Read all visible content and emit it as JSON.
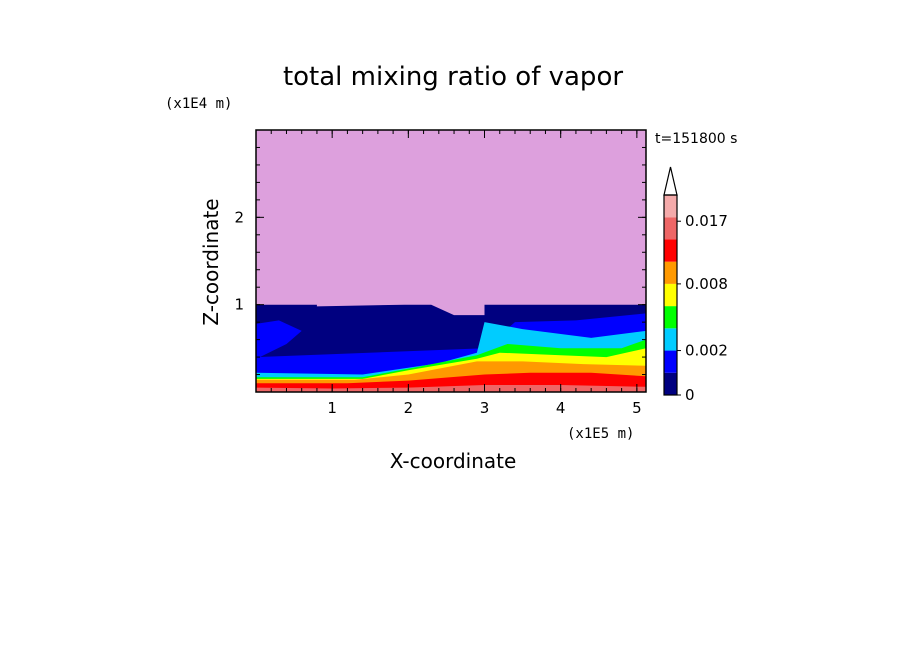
{
  "chart_data": {
    "type": "heatmap",
    "title": "total mixing ratio of vapor",
    "xlabel": "X-coordinate",
    "ylabel": "Z-coordinate",
    "x_unit": "(x1E5 m)",
    "y_unit": "(x1E4 m)",
    "time_label": "t=151800 s",
    "xlim": [
      0,
      5.12
    ],
    "ylim": [
      0,
      3
    ],
    "x_ticks": [
      1,
      2,
      3,
      4,
      5
    ],
    "y_ticks": [
      1,
      2
    ],
    "colorbar": {
      "levels": [
        "0",
        "0.002",
        "0.008",
        "0.017"
      ],
      "level_values": [
        0,
        0.002,
        0.008,
        0.017
      ],
      "colors": [
        "#000080",
        "#0000ff",
        "#00ccff",
        "#00ff00",
        "#ffff00",
        "#ff9900",
        "#ff0000",
        "#ee6666",
        "#f4aaaa"
      ],
      "overflow_color": "#ffffff"
    },
    "field": {
      "background_above_1e4": "#dda0dd",
      "bands": [
        {
          "color": "#000080",
          "top": [
            [
              0,
              1.0
            ],
            [
              0.8,
              1.0
            ],
            [
              0.8,
              0.98
            ],
            [
              1.95,
              1.0
            ],
            [
              2.3,
              1.0
            ],
            [
              2.6,
              0.88
            ],
            [
              3.0,
              0.88
            ],
            [
              3.0,
              1.0
            ],
            [
              5.12,
              1.0
            ]
          ]
        },
        {
          "color": "#0000ff",
          "top": [
            [
              0,
              0.78
            ],
            [
              0.3,
              0.82
            ],
            [
              0.6,
              0.7
            ],
            [
              0.4,
              0.55
            ],
            [
              0.05,
              0.4
            ],
            [
              0,
              0.4
            ],
            [
              3.0,
              0.5
            ],
            [
              3.4,
              0.8
            ],
            [
              4.2,
              0.82
            ],
            [
              5.12,
              0.9
            ]
          ]
        },
        {
          "color": "#00ccff",
          "top": [
            [
              0,
              0.22
            ],
            [
              1.4,
              0.2
            ],
            [
              2.4,
              0.33
            ],
            [
              2.9,
              0.45
            ],
            [
              3.0,
              0.8
            ],
            [
              3.5,
              0.72
            ],
            [
              4.4,
              0.62
            ],
            [
              5.12,
              0.7
            ]
          ]
        },
        {
          "color": "#00ff00",
          "top": [
            [
              0,
              0.17
            ],
            [
              1.4,
              0.17
            ],
            [
              2.2,
              0.3
            ],
            [
              2.9,
              0.42
            ],
            [
              3.3,
              0.55
            ],
            [
              4.0,
              0.5
            ],
            [
              4.8,
              0.5
            ],
            [
              5.12,
              0.6
            ]
          ]
        },
        {
          "color": "#ffff00",
          "top": [
            [
              0,
              0.15
            ],
            [
              1.4,
              0.15
            ],
            [
              2.0,
              0.25
            ],
            [
              2.9,
              0.38
            ],
            [
              3.2,
              0.45
            ],
            [
              4.0,
              0.42
            ],
            [
              4.6,
              0.4
            ],
            [
              5.12,
              0.5
            ]
          ]
        },
        {
          "color": "#ff9900",
          "top": [
            [
              0,
              0.14
            ],
            [
              1.3,
              0.14
            ],
            [
              2.0,
              0.2
            ],
            [
              2.9,
              0.35
            ],
            [
              3.5,
              0.35
            ],
            [
              4.3,
              0.32
            ],
            [
              5.12,
              0.3
            ]
          ]
        },
        {
          "color": "#ff0000",
          "top": [
            [
              0,
              0.1
            ],
            [
              1.2,
              0.1
            ],
            [
              2.0,
              0.13
            ],
            [
              3.0,
              0.2
            ],
            [
              3.6,
              0.22
            ],
            [
              4.4,
              0.22
            ],
            [
              5.12,
              0.18
            ]
          ]
        },
        {
          "color": "#ee6666",
          "top": [
            [
              0,
              0.05
            ],
            [
              1.0,
              0.04
            ],
            [
              2.0,
              0.05
            ],
            [
              3.0,
              0.08
            ],
            [
              4.0,
              0.08
            ],
            [
              5.12,
              0.06
            ]
          ]
        }
      ]
    }
  }
}
